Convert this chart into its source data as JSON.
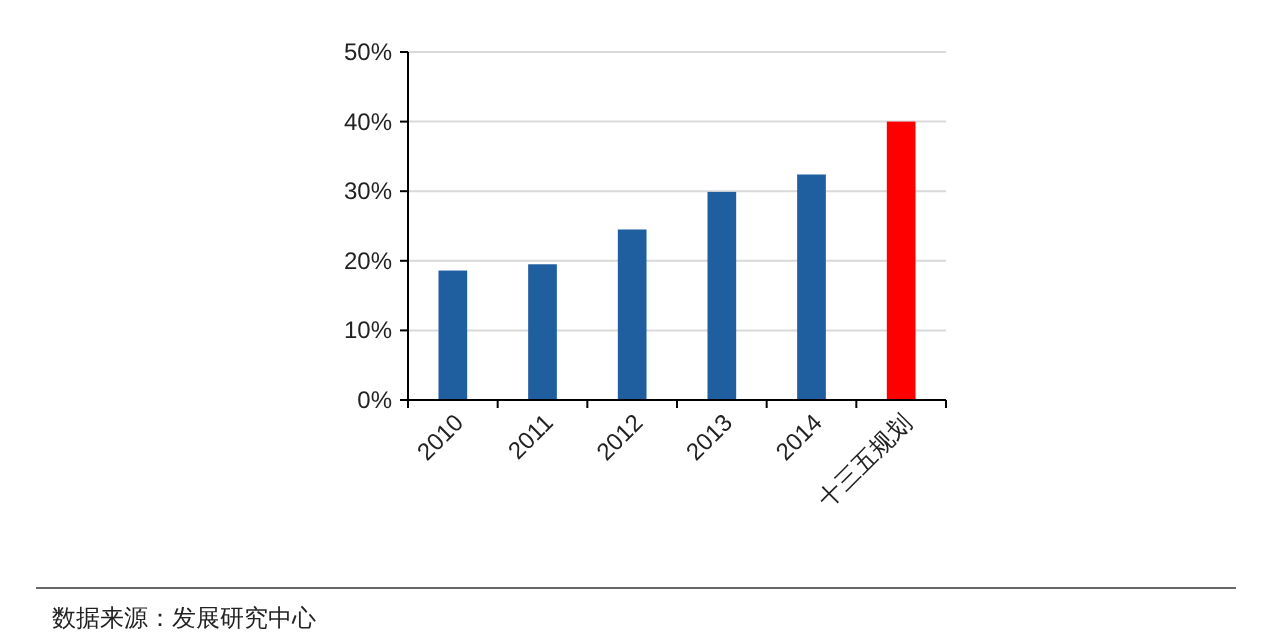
{
  "chart_data": {
    "type": "bar",
    "categories": [
      "2010",
      "2011",
      "2012",
      "2013",
      "2014",
      "十三五规划"
    ],
    "values": [
      18.6,
      19.5,
      24.5,
      29.9,
      32.4,
      40
    ],
    "colors": [
      "#1f5fa0",
      "#1f5fa0",
      "#1f5fa0",
      "#1f5fa0",
      "#1f5fa0",
      "#ff0000"
    ],
    "ylim": [
      0,
      50
    ],
    "yticks": [
      {
        "value": 0,
        "label": "0%"
      },
      {
        "value": 10,
        "label": "10%"
      },
      {
        "value": 20,
        "label": "20%"
      },
      {
        "value": 30,
        "label": "30%"
      },
      {
        "value": 40,
        "label": "40%"
      },
      {
        "value": 50,
        "label": "50%"
      }
    ],
    "grid": "y",
    "annotations": [
      "数据来源：发展研究中心"
    ]
  }
}
